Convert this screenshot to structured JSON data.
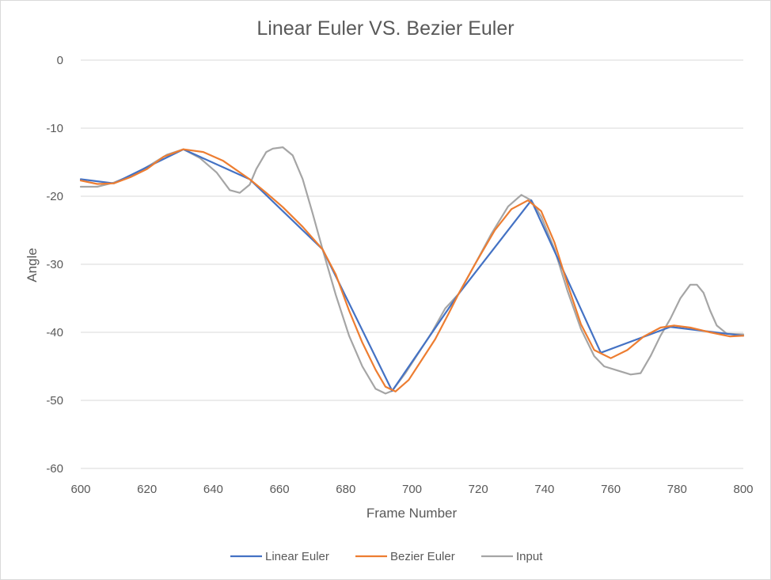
{
  "chart_data": {
    "type": "line",
    "title": "Linear Euler VS. Bezier Euler",
    "xlabel": "Frame Number",
    "ylabel": "Angle",
    "xlim": [
      600,
      800
    ],
    "ylim": [
      -60,
      0
    ],
    "x_ticks": [
      "600",
      "620",
      "640",
      "660",
      "680",
      "700",
      "720",
      "740",
      "760",
      "780",
      "800"
    ],
    "y_ticks": [
      "0",
      "-10",
      "-20",
      "-30",
      "-40",
      "-50",
      "-60"
    ],
    "grid": "horizontal",
    "legend_position": "bottom",
    "series": [
      {
        "name": "Linear Euler",
        "color": "#4472c4",
        "points": [
          [
            600,
            -17.5
          ],
          [
            610,
            -18.1
          ],
          [
            631,
            -13.1
          ],
          [
            651,
            -17.5
          ],
          [
            673,
            -27.8
          ],
          [
            694,
            -48.6
          ],
          [
            714,
            -34.4
          ],
          [
            736,
            -20.6
          ],
          [
            757,
            -43.0
          ],
          [
            778,
            -39.2
          ],
          [
            800,
            -40.5
          ]
        ]
      },
      {
        "name": "Bezier Euler",
        "color": "#ed7d31",
        "points": [
          [
            600,
            -17.7
          ],
          [
            605,
            -18.2
          ],
          [
            610,
            -18.1
          ],
          [
            615,
            -17.2
          ],
          [
            620,
            -16.0
          ],
          [
            625,
            -14.2
          ],
          [
            631,
            -13.1
          ],
          [
            637,
            -13.5
          ],
          [
            643,
            -14.8
          ],
          [
            651,
            -17.5
          ],
          [
            656,
            -19.5
          ],
          [
            661,
            -21.6
          ],
          [
            667,
            -24.5
          ],
          [
            673,
            -27.8
          ],
          [
            677,
            -31.5
          ],
          [
            681,
            -36.8
          ],
          [
            685,
            -41.5
          ],
          [
            689,
            -45.5
          ],
          [
            692,
            -48.0
          ],
          [
            695,
            -48.7
          ],
          [
            699,
            -47.0
          ],
          [
            703,
            -44.0
          ],
          [
            707,
            -41.0
          ],
          [
            711,
            -37.3
          ],
          [
            714,
            -34.4
          ],
          [
            719,
            -30.0
          ],
          [
            725,
            -25.0
          ],
          [
            730,
            -21.9
          ],
          [
            735,
            -20.6
          ],
          [
            739,
            -22.2
          ],
          [
            743,
            -26.8
          ],
          [
            747,
            -33.0
          ],
          [
            751,
            -38.8
          ],
          [
            755,
            -42.6
          ],
          [
            760,
            -43.8
          ],
          [
            765,
            -42.6
          ],
          [
            770,
            -40.6
          ],
          [
            775,
            -39.3
          ],
          [
            779,
            -39.0
          ],
          [
            784,
            -39.3
          ],
          [
            790,
            -40.0
          ],
          [
            796,
            -40.6
          ],
          [
            800,
            -40.5
          ]
        ]
      },
      {
        "name": "Input",
        "color": "#a5a5a5",
        "points": [
          [
            600,
            -18.6
          ],
          [
            605,
            -18.6
          ],
          [
            610,
            -18.0
          ],
          [
            616,
            -16.8
          ],
          [
            621,
            -15.4
          ],
          [
            626,
            -13.9
          ],
          [
            631,
            -13.1
          ],
          [
            636,
            -14.4
          ],
          [
            641,
            -16.5
          ],
          [
            645,
            -19.1
          ],
          [
            648,
            -19.5
          ],
          [
            651,
            -18.3
          ],
          [
            653,
            -16.0
          ],
          [
            656,
            -13.5
          ],
          [
            658,
            -13.0
          ],
          [
            661,
            -12.8
          ],
          [
            664,
            -14.0
          ],
          [
            667,
            -17.5
          ],
          [
            670,
            -22.5
          ],
          [
            673,
            -27.8
          ],
          [
            677,
            -34.5
          ],
          [
            681,
            -40.5
          ],
          [
            685,
            -45.0
          ],
          [
            689,
            -48.3
          ],
          [
            692,
            -49.0
          ],
          [
            694,
            -48.6
          ],
          [
            698,
            -46.0
          ],
          [
            702,
            -43.0
          ],
          [
            706,
            -40.0
          ],
          [
            710,
            -36.5
          ],
          [
            714,
            -34.4
          ],
          [
            719,
            -30.0
          ],
          [
            724,
            -25.5
          ],
          [
            729,
            -21.5
          ],
          [
            733,
            -19.8
          ],
          [
            736,
            -20.6
          ],
          [
            739,
            -23.0
          ],
          [
            743,
            -27.8
          ],
          [
            747,
            -34.0
          ],
          [
            751,
            -39.5
          ],
          [
            755,
            -43.5
          ],
          [
            758,
            -45.0
          ],
          [
            762,
            -45.6
          ],
          [
            766,
            -46.2
          ],
          [
            769,
            -46.0
          ],
          [
            772,
            -43.5
          ],
          [
            775,
            -40.5
          ],
          [
            778,
            -38.0
          ],
          [
            781,
            -35.0
          ],
          [
            784,
            -33.0
          ],
          [
            786,
            -33.0
          ],
          [
            788,
            -34.2
          ],
          [
            790,
            -36.8
          ],
          [
            792,
            -39.0
          ],
          [
            795,
            -40.2
          ],
          [
            800,
            -40.3
          ]
        ]
      }
    ]
  }
}
